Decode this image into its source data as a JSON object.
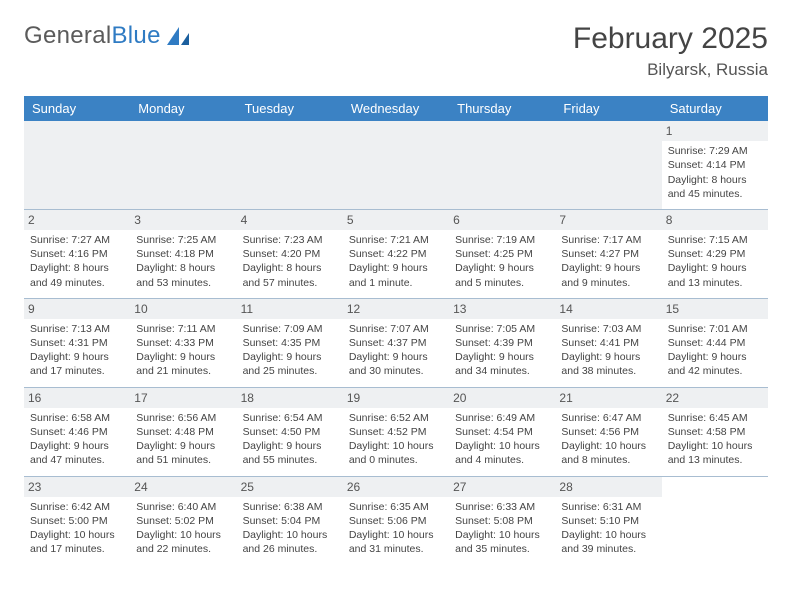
{
  "brand": {
    "name_part1": "General",
    "name_part2": "Blue"
  },
  "title": "February 2025",
  "location": "Bilyarsk, Russia",
  "header_bg": "#3b82c4",
  "header_fg": "#ffffff",
  "daynum_bg": "#eef0f2",
  "row_border": "#a8bdd1",
  "columns": [
    "Sunday",
    "Monday",
    "Tuesday",
    "Wednesday",
    "Thursday",
    "Friday",
    "Saturday"
  ],
  "weeks": [
    [
      null,
      null,
      null,
      null,
      null,
      null,
      {
        "n": "1",
        "sunrise": "Sunrise: 7:29 AM",
        "sunset": "Sunset: 4:14 PM",
        "day1": "Daylight: 8 hours",
        "day2": "and 45 minutes."
      }
    ],
    [
      {
        "n": "2",
        "sunrise": "Sunrise: 7:27 AM",
        "sunset": "Sunset: 4:16 PM",
        "day1": "Daylight: 8 hours",
        "day2": "and 49 minutes."
      },
      {
        "n": "3",
        "sunrise": "Sunrise: 7:25 AM",
        "sunset": "Sunset: 4:18 PM",
        "day1": "Daylight: 8 hours",
        "day2": "and 53 minutes."
      },
      {
        "n": "4",
        "sunrise": "Sunrise: 7:23 AM",
        "sunset": "Sunset: 4:20 PM",
        "day1": "Daylight: 8 hours",
        "day2": "and 57 minutes."
      },
      {
        "n": "5",
        "sunrise": "Sunrise: 7:21 AM",
        "sunset": "Sunset: 4:22 PM",
        "day1": "Daylight: 9 hours",
        "day2": "and 1 minute."
      },
      {
        "n": "6",
        "sunrise": "Sunrise: 7:19 AM",
        "sunset": "Sunset: 4:25 PM",
        "day1": "Daylight: 9 hours",
        "day2": "and 5 minutes."
      },
      {
        "n": "7",
        "sunrise": "Sunrise: 7:17 AM",
        "sunset": "Sunset: 4:27 PM",
        "day1": "Daylight: 9 hours",
        "day2": "and 9 minutes."
      },
      {
        "n": "8",
        "sunrise": "Sunrise: 7:15 AM",
        "sunset": "Sunset: 4:29 PM",
        "day1": "Daylight: 9 hours",
        "day2": "and 13 minutes."
      }
    ],
    [
      {
        "n": "9",
        "sunrise": "Sunrise: 7:13 AM",
        "sunset": "Sunset: 4:31 PM",
        "day1": "Daylight: 9 hours",
        "day2": "and 17 minutes."
      },
      {
        "n": "10",
        "sunrise": "Sunrise: 7:11 AM",
        "sunset": "Sunset: 4:33 PM",
        "day1": "Daylight: 9 hours",
        "day2": "and 21 minutes."
      },
      {
        "n": "11",
        "sunrise": "Sunrise: 7:09 AM",
        "sunset": "Sunset: 4:35 PM",
        "day1": "Daylight: 9 hours",
        "day2": "and 25 minutes."
      },
      {
        "n": "12",
        "sunrise": "Sunrise: 7:07 AM",
        "sunset": "Sunset: 4:37 PM",
        "day1": "Daylight: 9 hours",
        "day2": "and 30 minutes."
      },
      {
        "n": "13",
        "sunrise": "Sunrise: 7:05 AM",
        "sunset": "Sunset: 4:39 PM",
        "day1": "Daylight: 9 hours",
        "day2": "and 34 minutes."
      },
      {
        "n": "14",
        "sunrise": "Sunrise: 7:03 AM",
        "sunset": "Sunset: 4:41 PM",
        "day1": "Daylight: 9 hours",
        "day2": "and 38 minutes."
      },
      {
        "n": "15",
        "sunrise": "Sunrise: 7:01 AM",
        "sunset": "Sunset: 4:44 PM",
        "day1": "Daylight: 9 hours",
        "day2": "and 42 minutes."
      }
    ],
    [
      {
        "n": "16",
        "sunrise": "Sunrise: 6:58 AM",
        "sunset": "Sunset: 4:46 PM",
        "day1": "Daylight: 9 hours",
        "day2": "and 47 minutes."
      },
      {
        "n": "17",
        "sunrise": "Sunrise: 6:56 AM",
        "sunset": "Sunset: 4:48 PM",
        "day1": "Daylight: 9 hours",
        "day2": "and 51 minutes."
      },
      {
        "n": "18",
        "sunrise": "Sunrise: 6:54 AM",
        "sunset": "Sunset: 4:50 PM",
        "day1": "Daylight: 9 hours",
        "day2": "and 55 minutes."
      },
      {
        "n": "19",
        "sunrise": "Sunrise: 6:52 AM",
        "sunset": "Sunset: 4:52 PM",
        "day1": "Daylight: 10 hours",
        "day2": "and 0 minutes."
      },
      {
        "n": "20",
        "sunrise": "Sunrise: 6:49 AM",
        "sunset": "Sunset: 4:54 PM",
        "day1": "Daylight: 10 hours",
        "day2": "and 4 minutes."
      },
      {
        "n": "21",
        "sunrise": "Sunrise: 6:47 AM",
        "sunset": "Sunset: 4:56 PM",
        "day1": "Daylight: 10 hours",
        "day2": "and 8 minutes."
      },
      {
        "n": "22",
        "sunrise": "Sunrise: 6:45 AM",
        "sunset": "Sunset: 4:58 PM",
        "day1": "Daylight: 10 hours",
        "day2": "and 13 minutes."
      }
    ],
    [
      {
        "n": "23",
        "sunrise": "Sunrise: 6:42 AM",
        "sunset": "Sunset: 5:00 PM",
        "day1": "Daylight: 10 hours",
        "day2": "and 17 minutes."
      },
      {
        "n": "24",
        "sunrise": "Sunrise: 6:40 AM",
        "sunset": "Sunset: 5:02 PM",
        "day1": "Daylight: 10 hours",
        "day2": "and 22 minutes."
      },
      {
        "n": "25",
        "sunrise": "Sunrise: 6:38 AM",
        "sunset": "Sunset: 5:04 PM",
        "day1": "Daylight: 10 hours",
        "day2": "and 26 minutes."
      },
      {
        "n": "26",
        "sunrise": "Sunrise: 6:35 AM",
        "sunset": "Sunset: 5:06 PM",
        "day1": "Daylight: 10 hours",
        "day2": "and 31 minutes."
      },
      {
        "n": "27",
        "sunrise": "Sunrise: 6:33 AM",
        "sunset": "Sunset: 5:08 PM",
        "day1": "Daylight: 10 hours",
        "day2": "and 35 minutes."
      },
      {
        "n": "28",
        "sunrise": "Sunrise: 6:31 AM",
        "sunset": "Sunset: 5:10 PM",
        "day1": "Daylight: 10 hours",
        "day2": "and 39 minutes."
      },
      null
    ]
  ]
}
